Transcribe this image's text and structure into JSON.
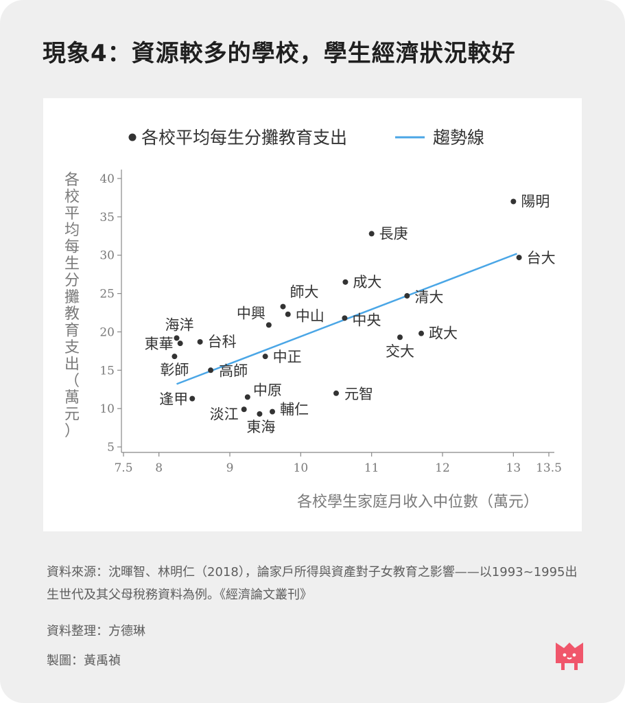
{
  "title": "現象4：資源較多的學校，學生經濟狀況較好",
  "chart_data": {
    "type": "scatter",
    "title": "",
    "xlabel": "各校學生家庭月收入中位數（萬元）",
    "ylabel": "各校平均每生分攤教育支出（萬元）",
    "xlim": [
      7.5,
      13.5
    ],
    "ylim": [
      5,
      40
    ],
    "x_ticks": [
      "7.5",
      "8",
      "9",
      "10",
      "11",
      "12",
      "13",
      "13.5"
    ],
    "y_ticks": [
      "5",
      "10",
      "15",
      "20",
      "25",
      "30",
      "35",
      "40"
    ],
    "grid": false,
    "legend": {
      "position": "top",
      "entries": [
        "各校平均每生分攤教育支出",
        "趨勢線"
      ]
    },
    "series": [
      {
        "name": "各校平均每生分攤教育支出",
        "points": [
          {
            "label": "陽明",
            "x": 13.0,
            "y": 37.0
          },
          {
            "label": "長庚",
            "x": 11.0,
            "y": 32.8
          },
          {
            "label": "台大",
            "x": 13.08,
            "y": 29.7
          },
          {
            "label": "成大",
            "x": 10.63,
            "y": 26.5
          },
          {
            "label": "清大",
            "x": 11.5,
            "y": 24.7
          },
          {
            "label": "師大",
            "x": 9.75,
            "y": 23.3
          },
          {
            "label": "中山",
            "x": 9.82,
            "y": 22.3
          },
          {
            "label": "中央",
            "x": 10.62,
            "y": 21.8
          },
          {
            "label": "中興",
            "x": 9.55,
            "y": 20.9
          },
          {
            "label": "政大",
            "x": 11.7,
            "y": 19.8
          },
          {
            "label": "交大",
            "x": 11.4,
            "y": 19.3
          },
          {
            "label": "海洋",
            "x": 8.25,
            "y": 19.2
          },
          {
            "label": "東華",
            "x": 8.3,
            "y": 18.5
          },
          {
            "label": "台科",
            "x": 8.58,
            "y": 18.7
          },
          {
            "label": "中正",
            "x": 9.5,
            "y": 16.8
          },
          {
            "label": "彰師",
            "x": 8.22,
            "y": 16.8
          },
          {
            "label": "高師",
            "x": 8.73,
            "y": 15.0
          },
          {
            "label": "元智",
            "x": 10.5,
            "y": 12.0
          },
          {
            "label": "中原",
            "x": 9.25,
            "y": 11.5
          },
          {
            "label": "逢甲",
            "x": 8.47,
            "y": 11.3
          },
          {
            "label": "淡江",
            "x": 9.2,
            "y": 9.9
          },
          {
            "label": "輔仁",
            "x": 9.6,
            "y": 9.6
          },
          {
            "label": "東海",
            "x": 9.42,
            "y": 9.3
          }
        ]
      },
      {
        "name": "趨勢線",
        "type": "line",
        "x": [
          8.25,
          13.05
        ],
        "y": [
          13.2,
          30.2
        ]
      }
    ]
  },
  "colors": {
    "point": "#333333",
    "trend": "#4aa6e6",
    "axis": "#888888",
    "text": "#333333",
    "axis_text": "#7a7a7a",
    "background": "#efefef",
    "logo": "#f0566b"
  },
  "source_text": "資料來源：沈暉智、林明仁（2018），論家戶所得與資產對子女教育之影響——以1993~1995出生世代及其父母稅務資料為例。《經濟論文叢刊》",
  "editor_text": "資料整理：方德琳",
  "design_text": "製圖：黃禹禎",
  "logo_icon": "mascot-logo-icon"
}
